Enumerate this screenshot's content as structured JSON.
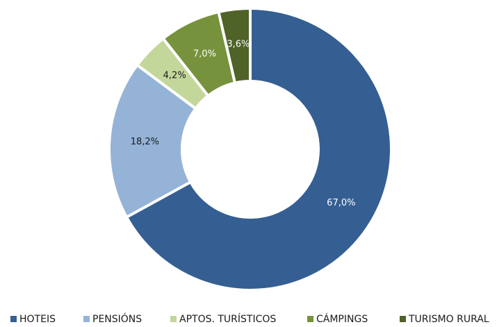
{
  "chart_data": {
    "type": "donut",
    "categories": [
      "HOTEIS",
      "PENSIÓNS",
      "APTOS. TURÍSTICOS",
      "CÁMPINGS",
      "TURISMO RURAL"
    ],
    "values": [
      67.0,
      18.2,
      4.2,
      7.0,
      3.6
    ],
    "value_labels": [
      "67,0%",
      "18,2%",
      "4,2%",
      "7,0%",
      "3,6%"
    ],
    "colors": [
      "#355f93",
      "#95b3d7",
      "#c4d79b",
      "#76923c",
      "#4f6228"
    ],
    "label_colors": [
      "#ffffff",
      "#1a1a1a",
      "#1a1a1a",
      "#ffffff",
      "#ffffff"
    ],
    "legend": "bottom"
  }
}
